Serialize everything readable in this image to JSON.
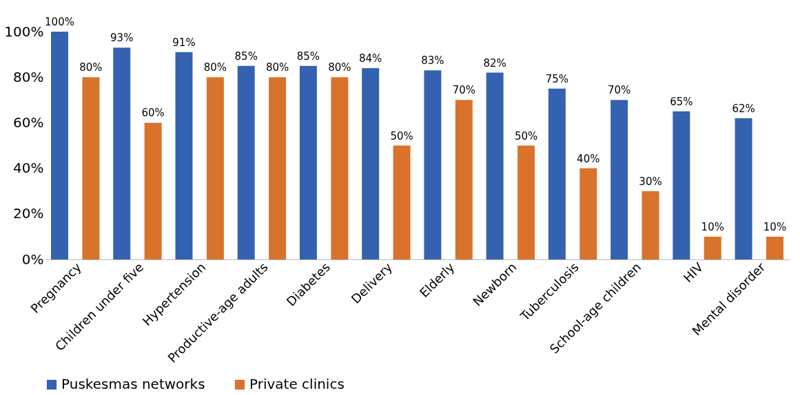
{
  "chart_data": {
    "type": "bar",
    "categories": [
      "Pregnancy",
      "Children under five",
      "Hypertension",
      "Productive-age adults",
      "Diabetes",
      "Delivery",
      "Elderly",
      "Newborn",
      "Tuberculosis",
      "School-age children",
      "HIV",
      "Mental disorder"
    ],
    "series": [
      {
        "name": "Puskesmas networks",
        "color": "#3462b0",
        "values": [
          100,
          93,
          91,
          85,
          85,
          84,
          83,
          82,
          75,
          70,
          65,
          62
        ],
        "value_labels": [
          "100%",
          "93%",
          "91%",
          "85%",
          "85%",
          "84%",
          "83%",
          "82%",
          "75%",
          "70%",
          "65%",
          "62%"
        ]
      },
      {
        "name": "Private clinics",
        "color": "#d9722b",
        "values": [
          80,
          60,
          80,
          80,
          80,
          50,
          70,
          50,
          40,
          30,
          10,
          10
        ],
        "value_labels": [
          "80%",
          "60%",
          "80%",
          "80%",
          "80%",
          "50%",
          "70%",
          "50%",
          "40%",
          "30%",
          "10%",
          "10%"
        ]
      }
    ],
    "ylim": [
      0,
      100
    ],
    "yticks": [
      {
        "value": 0,
        "label": "0%"
      },
      {
        "value": 20,
        "label": "20%"
      },
      {
        "value": 40,
        "label": "40%"
      },
      {
        "value": 60,
        "label": "60%"
      },
      {
        "value": 80,
        "label": "80%"
      },
      {
        "value": 100,
        "label": "100%"
      }
    ],
    "grid": false,
    "legend": "bottom"
  }
}
